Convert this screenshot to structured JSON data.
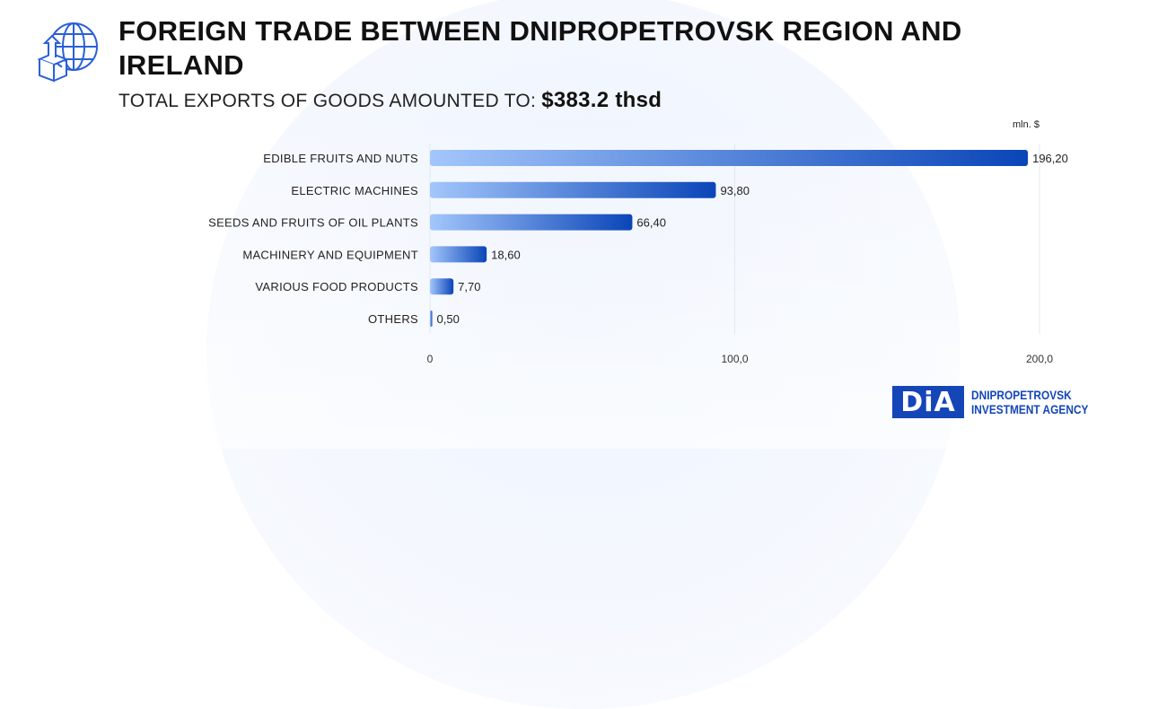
{
  "header": {
    "title": "FOREIGN TRADE BETWEEN DNIPROPETROVSK REGION AND IRELAND",
    "subtitle_label": "TOTAL EXPORTS OF GOODS AMOUNTED TO:",
    "subtitle_value": "$383.2 thsd",
    "icon": "globe-export-box-icon"
  },
  "chart_data": {
    "type": "bar",
    "orientation": "horizontal",
    "unit": "mln. $",
    "categories": [
      "EDIBLE FRUITS AND NUTS",
      "ELECTRIC MACHINES",
      "SEEDS AND FRUITS OF OIL PLANTS",
      "MACHINERY AND EQUIPMENT",
      "VARIOUS FOOD PRODUCTS",
      "OTHERS"
    ],
    "values": [
      196.2,
      93.8,
      66.4,
      18.6,
      7.7,
      0.5
    ],
    "value_labels": [
      "196,20",
      "93,80",
      "66,40",
      "18,60",
      "7,70",
      "0,50"
    ],
    "xlim": [
      0,
      200
    ],
    "ticks": [
      0,
      100,
      200
    ],
    "tick_labels": [
      "0",
      "100,0",
      "200,0"
    ],
    "grid": true,
    "colors": {
      "bar_start": "#a3c6fb",
      "bar_end": "#0a45b8"
    }
  },
  "brand": {
    "mark": "DIA",
    "line1": "DNIPROPETROVSK",
    "line2": "INVESTMENT AGENCY",
    "color": "#1446b8"
  }
}
